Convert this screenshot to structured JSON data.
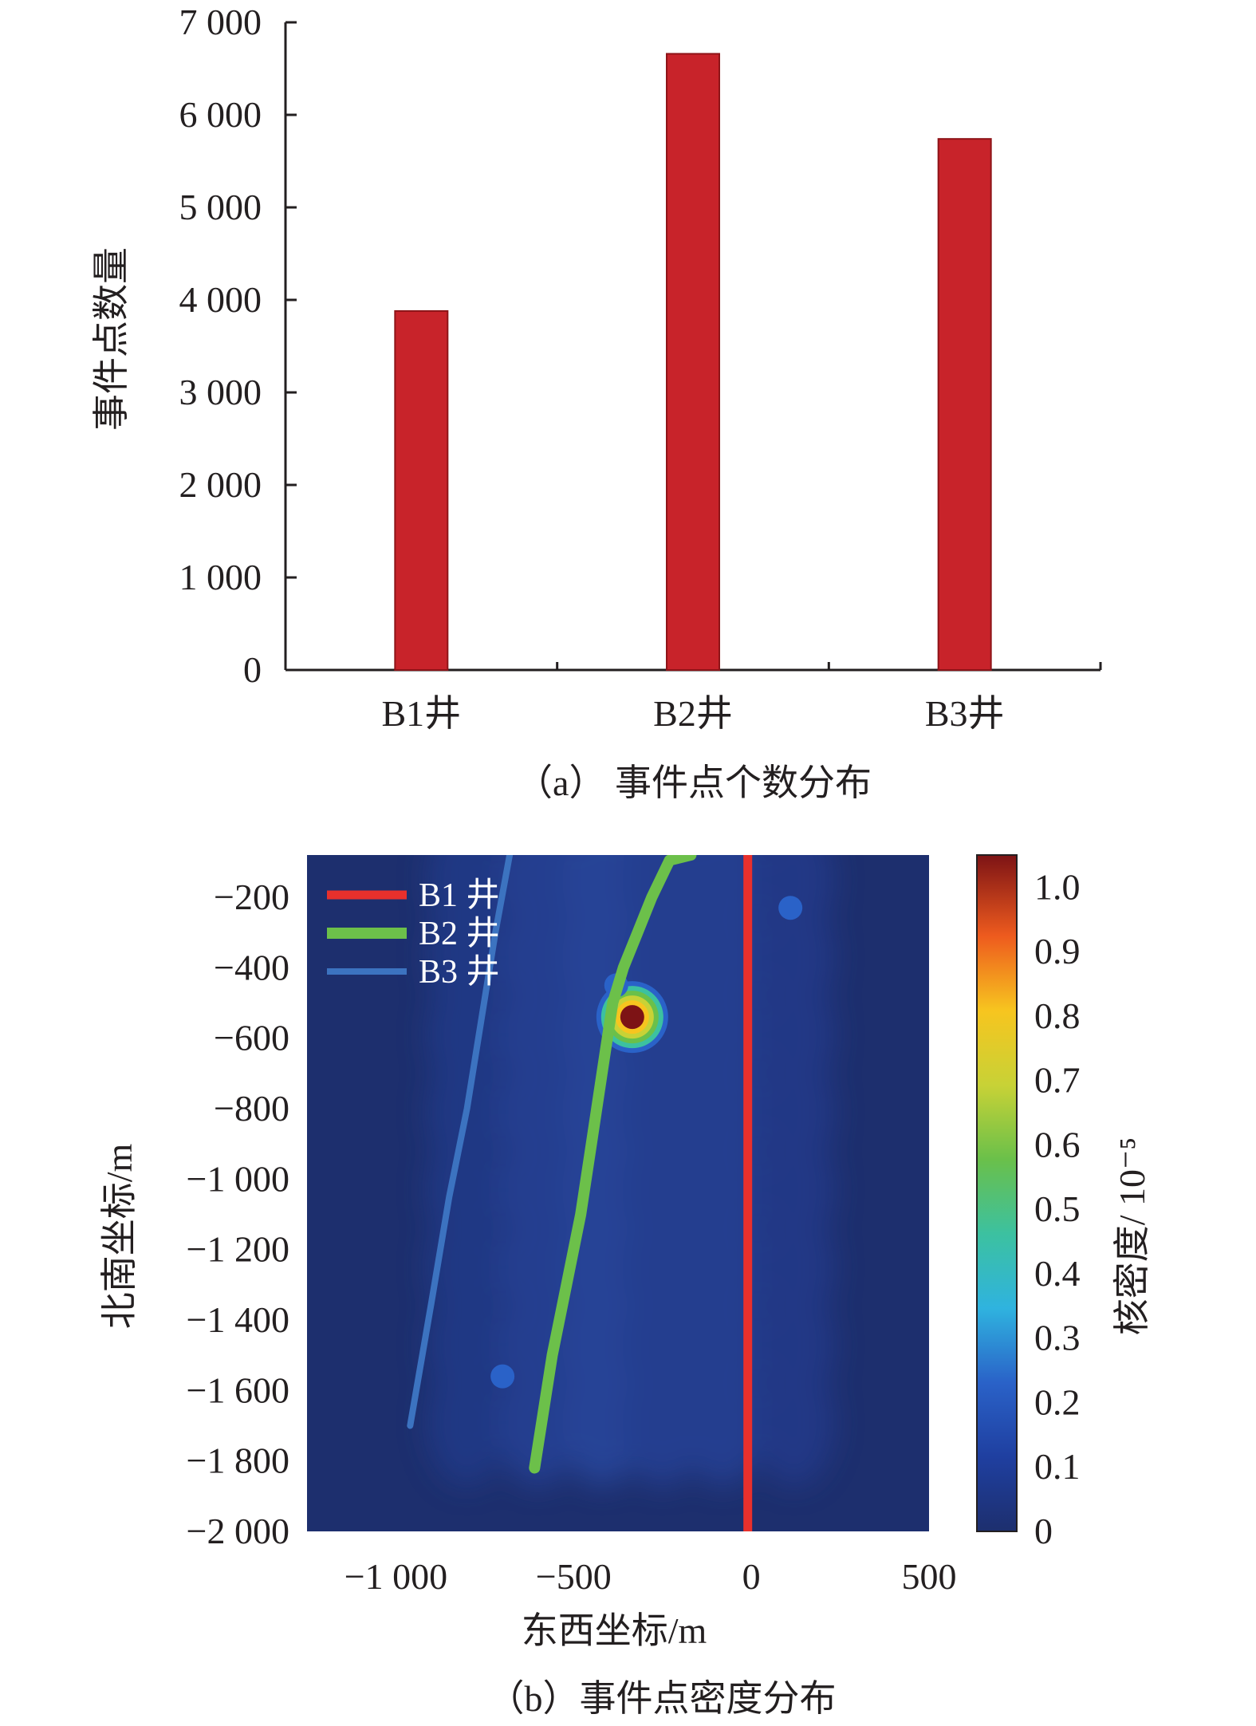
{
  "chart_data": [
    {
      "type": "bar",
      "caption": "（a） 事件点个数分布",
      "ylabel": "事件点数量",
      "xlabel": "",
      "categories": [
        "B1井",
        "B2井",
        "B3井"
      ],
      "values": [
        3880,
        6660,
        5740
      ],
      "ylim": [
        0,
        7000
      ],
      "yticks": [
        0,
        1000,
        2000,
        3000,
        4000,
        5000,
        6000,
        7000
      ],
      "ytick_labels": [
        "0",
        "1 000",
        "2 000",
        "3 000",
        "4 000",
        "5 000",
        "6 000",
        "7 000"
      ],
      "bar_color": "#c8232a",
      "grid": false
    },
    {
      "type": "heatmap",
      "caption": "（b）事件点密度分布",
      "xlabel": "东西坐标/m",
      "ylabel": "北南坐标/m",
      "colorbar_label": "核密度/ 10⁻⁵",
      "xlim": [
        -1250,
        500
      ],
      "ylim": [
        -2000,
        -80
      ],
      "xticks": [
        -1000,
        -500,
        0,
        500
      ],
      "xtick_labels": [
        "−1 000",
        "−500",
        "0",
        "500"
      ],
      "yticks": [
        -200,
        -400,
        -600,
        -800,
        -1000,
        -1200,
        -1400,
        -1600,
        -1800,
        -2000
      ],
      "ytick_labels": [
        "−200",
        "−400",
        "−600",
        "−800",
        "−1 000",
        "−1 200",
        "−1 400",
        "−1 600",
        "−1 800",
        "−2 000"
      ],
      "colorbar_range": [
        0,
        1.05
      ],
      "colorbar_ticks": [
        0,
        0.1,
        0.2,
        0.3,
        0.4,
        0.5,
        0.6,
        0.7,
        0.8,
        0.9,
        1.0
      ],
      "colorbar_tick_labels": [
        "0",
        "0.1",
        "0.2",
        "0.3",
        "0.4",
        "0.5",
        "0.6",
        "0.7",
        "0.8",
        "0.9",
        "1.0"
      ],
      "legend_position": "top-left",
      "series": [
        {
          "name": "B1 井",
          "color": "#e8302c",
          "x": [
            -10,
            -10
          ],
          "y": [
            -80,
            -2000
          ]
        },
        {
          "name": "B2 井",
          "color": "#6cc04a",
          "x": [
            -170,
            -230,
            -280,
            -320,
            -360,
            -390,
            -420,
            -450,
            -480,
            -520,
            -560,
            -610
          ],
          "y": [
            -80,
            -95,
            -200,
            -300,
            -400,
            -500,
            -700,
            -900,
            -1100,
            -1300,
            -1500,
            -1820
          ]
        },
        {
          "name": "B3 井",
          "color": "#3c73c0",
          "x": [
            -680,
            -720,
            -760,
            -800,
            -850,
            -900,
            -960
          ],
          "y": [
            -80,
            -300,
            -550,
            -800,
            -1050,
            -1350,
            -1700
          ]
        }
      ],
      "hotspots": [
        {
          "x": -335,
          "y": -540,
          "density": 0.95
        },
        {
          "x": -380,
          "y": -450,
          "density": 0.3
        },
        {
          "x": -700,
          "y": -1560,
          "density": 0.3
        },
        {
          "x": 110,
          "y": -230,
          "density": 0.2
        }
      ]
    }
  ]
}
